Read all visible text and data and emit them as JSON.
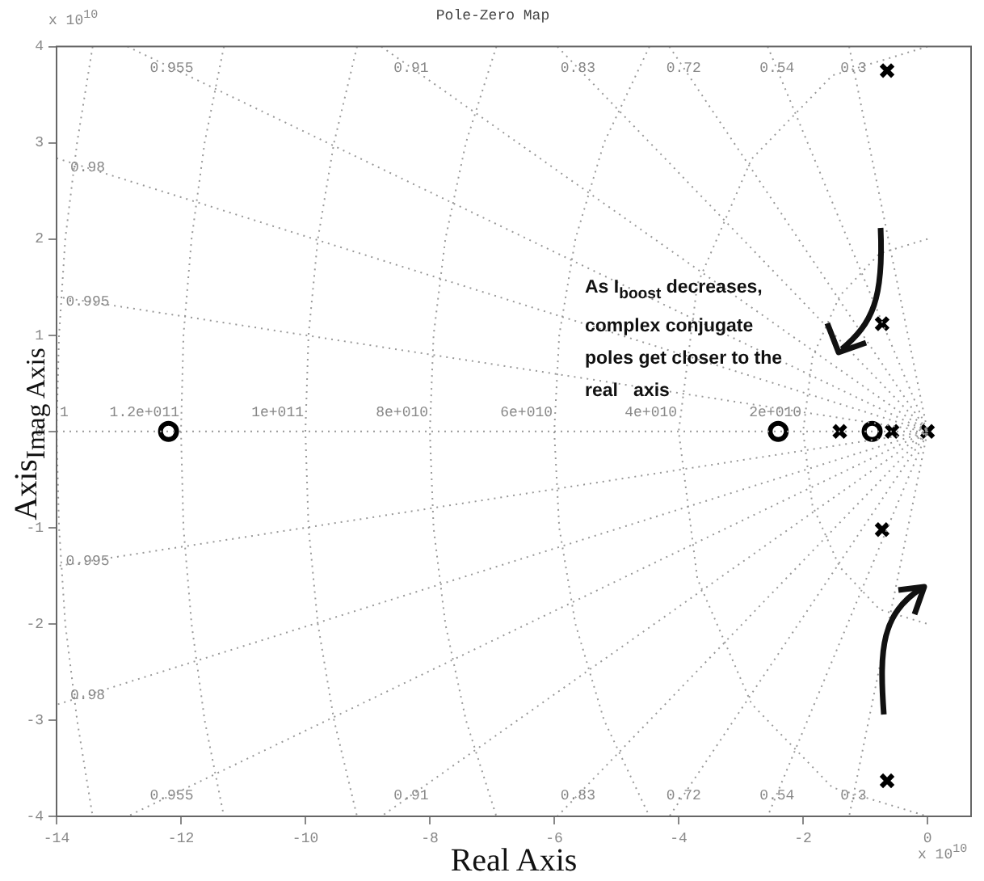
{
  "chart_data": {
    "type": "scatter",
    "title": "Pole-Zero Map",
    "xlabel": "Real Axis",
    "ylabel": "Axis$_{Imag Axis}$",
    "xlim": [
      -14,
      0.7
    ],
    "ylim": [
      -4,
      4
    ],
    "xticks": [
      -14,
      -12,
      -10,
      -8,
      -6,
      -4,
      -2,
      0
    ],
    "yticks": [
      -4,
      -3,
      -2,
      -1,
      0,
      1,
      2,
      3,
      4
    ],
    "series": [
      {
        "type": "line",
        "marker": "none",
        "line_style": "dotted",
        "color": "#999999",
        "x": [
          -12.86,
          0,
          -12.86
        ],
        "values": [
          4,
          0,
          -4
        ]
      },
      {
        "type": "line",
        "marker": "none",
        "line_style": "dotted",
        "color": "#999999",
        "x": [
          -8.78,
          0,
          -8.78
        ],
        "values": [
          4,
          0,
          -4
        ]
      },
      {
        "type": "line",
        "marker": "none",
        "line_style": "dotted",
        "color": "#999999",
        "x": [
          -5.95,
          0,
          -5.95
        ],
        "values": [
          4,
          0,
          -4
        ]
      },
      {
        "type": "line",
        "marker": "none",
        "line_style": "dotted",
        "color": "#999999",
        "x": [
          -4.15,
          0,
          -4.15
        ],
        "values": [
          4,
          0,
          -4
        ]
      },
      {
        "type": "line",
        "marker": "none",
        "line_style": "dotted",
        "color": "#999999",
        "x": [
          -2.57,
          0,
          -2.57
        ],
        "values": [
          4,
          0,
          -4
        ]
      },
      {
        "type": "line",
        "marker": "none",
        "line_style": "dotted",
        "color": "#999999",
        "x": [
          -1.26,
          0,
          -1.26
        ],
        "values": [
          4,
          0,
          -4
        ]
      },
      {
        "type": "line",
        "marker": "none",
        "line_style": "dotted",
        "color": "#999999",
        "x": [
          -14,
          0,
          -14
        ],
        "values": [
          2.84,
          0,
          -2.84
        ]
      },
      {
        "type": "line",
        "marker": "none",
        "line_style": "dotted",
        "color": "#999999",
        "x": [
          -14,
          0,
          -14
        ],
        "values": [
          1.4,
          0,
          -1.4
        ]
      },
      {
        "type": "line",
        "marker": "none",
        "line_style": "dotted",
        "color": "#999999",
        "x": [
          -14,
          0
        ],
        "values": [
          0,
          0
        ]
      },
      {
        "type": "line",
        "marker": "none",
        "line_style": "dotted",
        "color": "#999999",
        "x": [
          0,
          -0.77,
          -1.41,
          -1.85,
          -2,
          -1.85,
          -1.41,
          -0.77,
          0
        ],
        "values": [
          2,
          1.85,
          1.41,
          0.77,
          0,
          -0.77,
          -1.41,
          -1.85,
          -2
        ]
      },
      {
        "type": "line",
        "marker": "none",
        "line_style": "dotted",
        "color": "#999999",
        "x": [
          0,
          -1.53,
          -2.83,
          -3.7,
          -4,
          -3.7,
          -2.83,
          -1.53,
          0
        ],
        "values": [
          4,
          3.7,
          2.83,
          1.53,
          0,
          -1.53,
          -2.83,
          -3.7,
          -4
        ]
      },
      {
        "type": "line",
        "marker": "none",
        "line_style": "dotted",
        "color": "#999999",
        "x": [
          -4.47,
          -5.2,
          -5.66,
          -5.92,
          -6,
          -5.92,
          -5.66,
          -5.2,
          -4.47
        ],
        "values": [
          4,
          3,
          2,
          1,
          0,
          -1,
          -2,
          -3,
          -4
        ]
      },
      {
        "type": "line",
        "marker": "none",
        "line_style": "dotted",
        "color": "#999999",
        "x": [
          -6.93,
          -7.42,
          -7.75,
          -7.94,
          -8,
          -7.94,
          -7.75,
          -7.42,
          -6.93
        ],
        "values": [
          4,
          3,
          2,
          1,
          0,
          -1,
          -2,
          -3,
          -4
        ]
      },
      {
        "type": "line",
        "marker": "none",
        "line_style": "dotted",
        "color": "#999999",
        "x": [
          -9.17,
          -9.54,
          -9.8,
          -9.95,
          -10,
          -9.95,
          -9.8,
          -9.54,
          -9.17
        ],
        "values": [
          4,
          3,
          2,
          1,
          0,
          -1,
          -2,
          -3,
          -4
        ]
      },
      {
        "type": "line",
        "marker": "none",
        "line_style": "dotted",
        "color": "#999999",
        "x": [
          -11.31,
          -11.62,
          -11.83,
          -11.96,
          -12,
          -11.96,
          -11.83,
          -11.62,
          -11.31
        ],
        "values": [
          4,
          3,
          2,
          1,
          0,
          -1,
          -2,
          -3,
          -4
        ]
      },
      {
        "type": "line",
        "marker": "none",
        "line_style": "dotted",
        "color": "#999999",
        "x": [
          -13.42,
          -13.67,
          -13.86,
          -13.96,
          -14,
          -13.96,
          -13.86,
          -13.67,
          -13.42
        ],
        "values": [
          4,
          3,
          2,
          1,
          0,
          -1,
          -2,
          -3,
          -4
        ]
      },
      {
        "type": "scatter",
        "marker": "circle",
        "color": "#000000",
        "x": [
          -12.2,
          -2.4,
          -0.89
        ],
        "values": [
          0,
          0,
          0
        ]
      },
      {
        "type": "scatter",
        "marker": "cross",
        "color": "#000000",
        "x": [
          -0.65,
          -0.73,
          -1.41,
          -0.57,
          0,
          -0.73,
          -0.65
        ],
        "values": [
          3.75,
          1.12,
          0,
          0,
          0,
          -1.02,
          -3.63
        ]
      }
    ],
    "annotations": [
      "0.955",
      "0.91",
      "0.83",
      "0.72",
      "0.54",
      "0.3",
      "0.98",
      "0.995",
      "1",
      "0.995",
      "0.98",
      "0.955",
      "0.91",
      "0.83",
      "0.72",
      "0.54",
      "0.3",
      "1.2e+011",
      "1e+011",
      "8e+010",
      "6e+010",
      "4e+010",
      "2e+010",
      "x 10$^{10}$",
      "x 10$^{10}$",
      "As I$_{boost}$ decreases, complex conjugate poles get closer to the real   axis"
    ]
  }
}
